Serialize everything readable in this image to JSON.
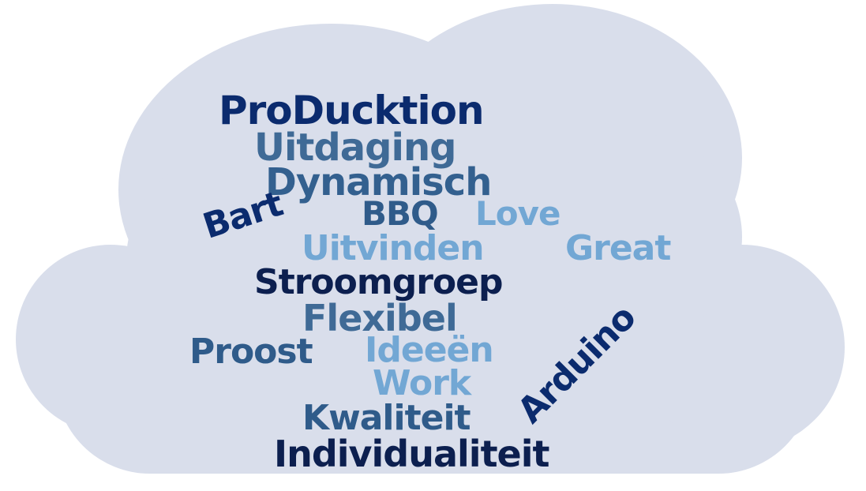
{
  "cloud": {
    "fill": "#d9deeb"
  },
  "colors": {
    "navy": "#0b2b6e",
    "dark_navy": "#0c1f4f",
    "steel": "#3f6a96",
    "mid_blue": "#2f5b8a",
    "light_blue": "#72a7d4"
  },
  "words": {
    "producktion": {
      "text": "ProDucktion",
      "color": "#0b2b6e"
    },
    "uitdaging": {
      "text": "Uitdaging",
      "color": "#3f6a96"
    },
    "dynamisch": {
      "text": "Dynamisch",
      "color": "#33608f"
    },
    "bbq": {
      "text": "BBQ",
      "color": "#2f5b8a"
    },
    "love": {
      "text": "Love",
      "color": "#72a7d4"
    },
    "bart": {
      "text": "Bart",
      "color": "#0b2b6e"
    },
    "uitvinden": {
      "text": "Uitvinden",
      "color": "#72a7d4"
    },
    "great": {
      "text": "Great",
      "color": "#72a7d4"
    },
    "stroomgroep": {
      "text": "Stroomgroep",
      "color": "#0c1f4f"
    },
    "flexibel": {
      "text": "Flexibel",
      "color": "#3f6a96"
    },
    "proost": {
      "text": "Proost",
      "color": "#2f5b8a"
    },
    "ideeen": {
      "text": "Ideeën",
      "color": "#72a7d4"
    },
    "work": {
      "text": "Work",
      "color": "#72a7d4"
    },
    "arduino": {
      "text": "Arduino",
      "color": "#0b2b6e"
    },
    "kwaliteit": {
      "text": "Kwaliteit",
      "color": "#2f5b8a"
    },
    "individualiteit": {
      "text": "Individualiteit",
      "color": "#0c1f4f"
    }
  }
}
